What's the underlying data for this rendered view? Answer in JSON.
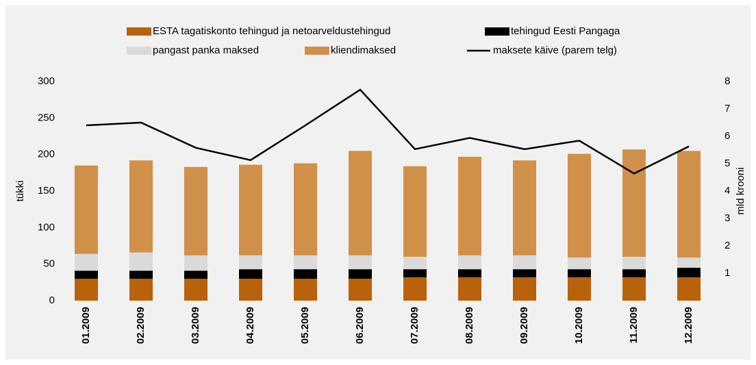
{
  "chart_data": {
    "type": "bar",
    "categories": [
      "01.2009",
      "02.2009",
      "03.2009",
      "04.2009",
      "05.2009",
      "06.2009",
      "07.2009",
      "08.2009",
      "09.2009",
      "10.2009",
      "11.2009",
      "12.2009"
    ],
    "series": [
      {
        "name": "ESTA tagatiskonto tehingud ja netoarveldustehingud",
        "color": "#b8620c",
        "values": [
          30,
          30,
          30,
          30,
          30,
          30,
          32,
          32,
          32,
          32,
          32,
          32
        ]
      },
      {
        "name": "tehingud Eesti Pangaga",
        "color": "#000000",
        "values": [
          11,
          11,
          11,
          13,
          13,
          13,
          11,
          11,
          11,
          11,
          11,
          13
        ]
      },
      {
        "name": "pangast panka maksed",
        "color": "#dadada",
        "values": [
          23,
          25,
          21,
          19,
          19,
          19,
          17,
          19,
          19,
          16,
          17,
          14
        ]
      },
      {
        "name": "kliendimaksed",
        "color": "#d1904a",
        "values": [
          121,
          126,
          121,
          124,
          126,
          143,
          124,
          135,
          130,
          142,
          147,
          146
        ]
      },
      {
        "name": "maksete käive (parem telg)",
        "color": "#000000",
        "type": "line",
        "axis": "y2",
        "values": [
          6.4,
          6.5,
          5.58,
          5.13,
          6.4,
          7.7,
          5.53,
          5.94,
          5.53,
          5.84,
          4.64,
          5.63
        ]
      }
    ],
    "ylabel": "tükki",
    "y2label": "mld krooni",
    "ylim": [
      0,
      300
    ],
    "yticks": [
      0,
      50,
      100,
      150,
      200,
      250,
      300
    ],
    "y2lim": [
      0,
      8
    ],
    "y2ticks": [
      1,
      2,
      3,
      4,
      5,
      6,
      7,
      8
    ],
    "stacked": true
  }
}
